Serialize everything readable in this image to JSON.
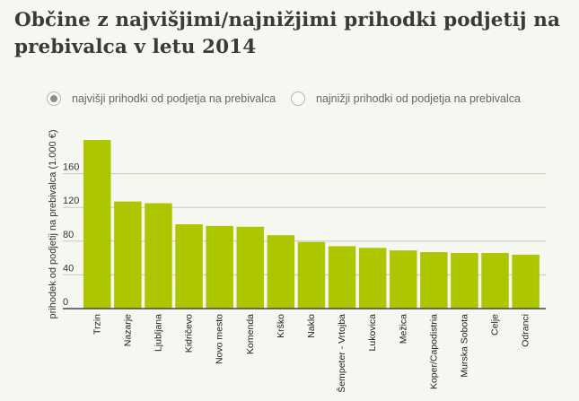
{
  "title": "Občine z najvišjimi/najnižjimi prihodki podjetij na prebivalca v letu 2014",
  "toggle": {
    "options": [
      {
        "label": "najvišji prihodki od podjetja na prebivalca",
        "selected": true
      },
      {
        "label": "najnižji prihodki od podjetja na prebivalca",
        "selected": false
      }
    ]
  },
  "colors": {
    "bar": "#aec600",
    "grid": "#c8c8c0",
    "axis": "#444444",
    "background": "#f7f7f1"
  },
  "chart_data": {
    "type": "bar",
    "title": "",
    "xlabel": "",
    "ylabel": "prihodek od podjetij na prebivalca (1.000 €)",
    "ylim": [
      0,
      200
    ],
    "yticks": [
      0,
      40,
      80,
      120,
      160
    ],
    "grid": true,
    "categories": [
      "Trzin",
      "Nazarje",
      "Ljubljana",
      "Kidričevo",
      "Novo mesto",
      "Komenda",
      "Krško",
      "Naklo",
      "Šempeter - Vrtojba",
      "Lukovica",
      "Mežica",
      "Koper/Capodistria",
      "Murska Sobota",
      "Celje",
      "Odranci"
    ],
    "values": [
      200,
      127,
      125,
      100,
      98,
      97,
      87,
      79,
      74,
      72,
      69,
      67,
      66,
      66,
      64
    ]
  }
}
